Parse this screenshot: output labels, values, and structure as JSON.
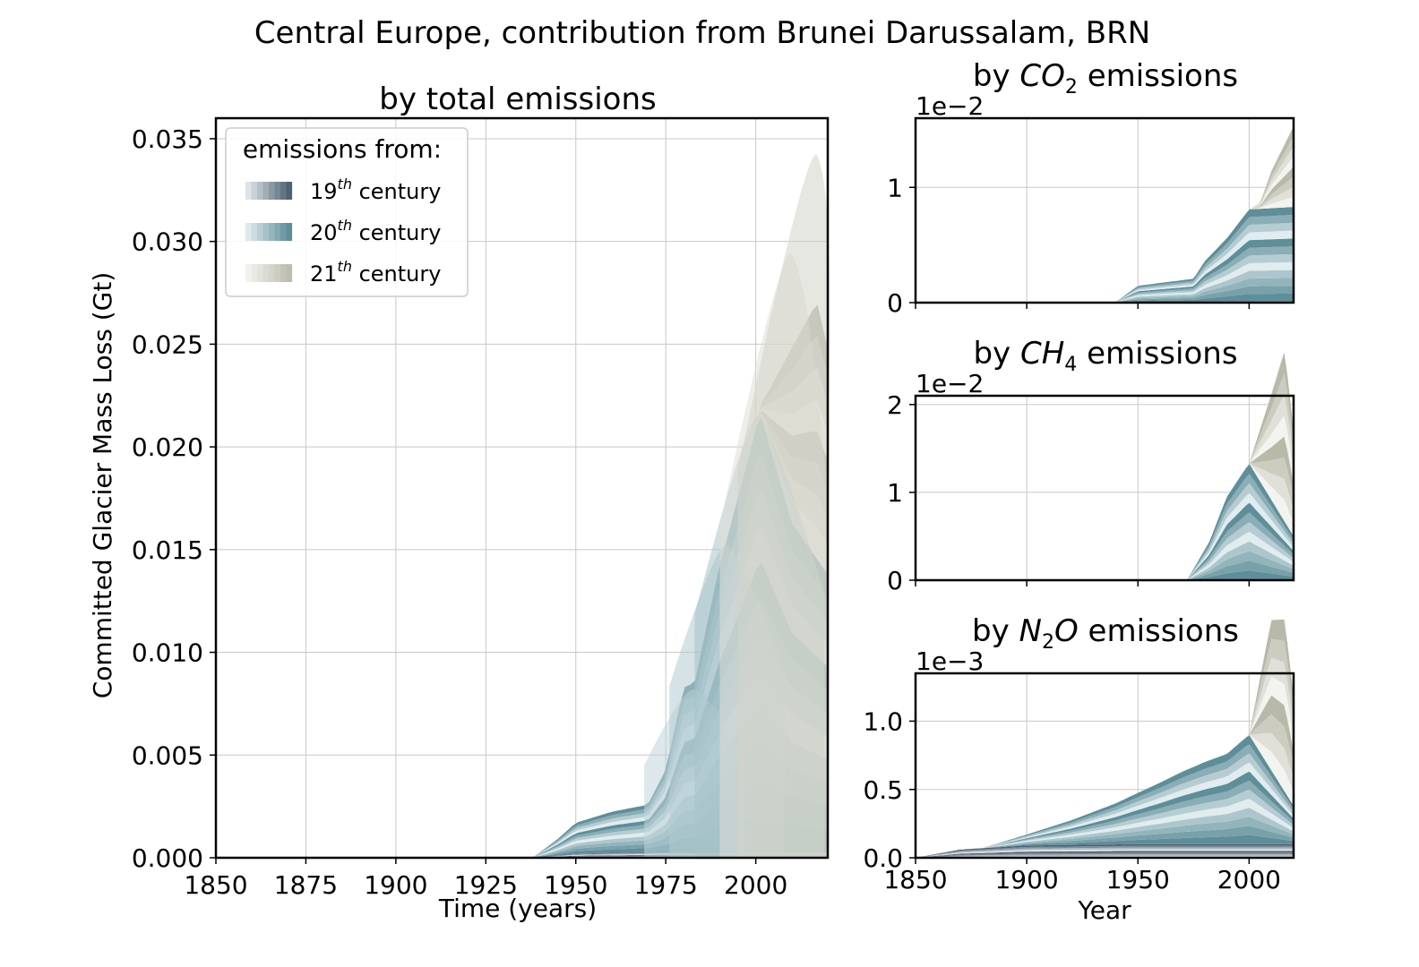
{
  "suptitle": "Central Europe, contribution from Brunei Darussalam, BRN",
  "legend": {
    "title": "emissions from:",
    "entries": [
      {
        "label": "19",
        "sup": "th",
        "suffix": " century",
        "gradient": [
          "#dfe3e8",
          "#4e6273"
        ]
      },
      {
        "label": "20",
        "sup": "th",
        "suffix": " century",
        "gradient": [
          "#dde9ed",
          "#5e8e99"
        ]
      },
      {
        "label": "21",
        "sup": "th",
        "suffix": " century",
        "gradient": [
          "#f2f2ee",
          "#bdbdae"
        ]
      }
    ]
  },
  "colors": {
    "c19_light": "#dfe3e8",
    "c19_dark": "#4e6273",
    "c20_light": "#e1ecef",
    "c20_dark": "#5e8e99",
    "c21_light": "#f3f3ef",
    "c21_dark": "#b9b9aa",
    "grid": "#c8c8c8"
  },
  "chart_data": [
    {
      "id": "total",
      "type": "area",
      "title": "by total emissions",
      "xlabel": "Time (years)",
      "ylabel": "Committed Glacier Mass Loss (Gt)",
      "xlim": [
        1850,
        2020
      ],
      "ylim": [
        0,
        0.036
      ],
      "xticks": [
        1850,
        1875,
        1900,
        1925,
        1950,
        1975,
        2000
      ],
      "yticks": [
        0,
        0.005,
        0.01,
        0.015,
        0.02,
        0.025,
        0.03,
        0.035
      ],
      "ytick_labels": [
        "0.000",
        "0.005",
        "0.010",
        "0.015",
        "0.020",
        "0.025",
        "0.030",
        "0.035"
      ],
      "offset_text": "",
      "grid": true,
      "legend_position": "upper-left",
      "series": [
        {
          "name": "19th century",
          "x": [
            1850,
            1900,
            1938,
            1950,
            1975,
            2000,
            2020
          ],
          "y": [
            0,
            0,
            0,
            0.0002,
            0.0003,
            0.0003,
            0.0003
          ]
        },
        {
          "name": "20th century",
          "x": [
            1850,
            1900,
            1938,
            1945,
            1950,
            1960,
            1970,
            1975,
            1980,
            1983,
            1990,
            1992,
            2000,
            2001,
            2010,
            2020
          ],
          "y": [
            0,
            0,
            0,
            0.0008,
            0.0015,
            0.002,
            0.0023,
            0.004,
            0.008,
            0.0082,
            0.014,
            0.0152,
            0.0205,
            0.0215,
            0.016,
            0.0135
          ]
        },
        {
          "name": "21st century",
          "x": [
            1850,
            1900,
            1938,
            2000,
            2001,
            2010,
            2017,
            2020
          ],
          "y": [
            0,
            0,
            0,
            0,
            0.0001,
            0.0085,
            0.0125,
            0.011
          ]
        }
      ],
      "peaks": [
        {
          "x": 1983,
          "y": 0.0082
        },
        {
          "x": 1992,
          "y": 0.0152
        },
        {
          "x": 2001,
          "y": 0.0215
        },
        {
          "x": 2010,
          "y": 0.0294
        },
        {
          "x": 2017,
          "y": 0.0342
        }
      ]
    },
    {
      "id": "co2",
      "type": "area",
      "title_prefix": "by ",
      "title_species": "CO",
      "title_sub": "2",
      "title_species_tail": "",
      "title_suffix": " emissions",
      "xlabel": "",
      "ylabel": "",
      "xlim": [
        1850,
        2020
      ],
      "ylim": [
        0,
        1.6
      ],
      "yticks": [
        0,
        1
      ],
      "ytick_labels": [
        "0",
        "1"
      ],
      "offset_text": "1e−2",
      "grid": true,
      "series": [
        {
          "name": "19th century",
          "x": [
            1850,
            2020
          ],
          "y": [
            0,
            0.01
          ]
        },
        {
          "name": "20th century",
          "x": [
            1850,
            1940,
            1950,
            1975,
            1980,
            1990,
            2000,
            2020
          ],
          "y": [
            0,
            0,
            0.14,
            0.2,
            0.35,
            0.55,
            0.8,
            0.82
          ]
        },
        {
          "name": "21st century",
          "x": [
            1850,
            2000,
            2005,
            2010,
            2020
          ],
          "y": [
            0,
            0,
            0.05,
            0.32,
            0.7
          ]
        }
      ]
    },
    {
      "id": "ch4",
      "type": "area",
      "title_prefix": "by ",
      "title_species": "CH",
      "title_sub": "4",
      "title_species_tail": "",
      "title_suffix": " emissions",
      "xlabel": "",
      "ylabel": "",
      "xlim": [
        1850,
        2020
      ],
      "ylim": [
        0,
        2.1
      ],
      "yticks": [
        0,
        1,
        2
      ],
      "ytick_labels": [
        "0",
        "1",
        "2"
      ],
      "offset_text": "1e−2",
      "grid": true,
      "series": [
        {
          "name": "19th century",
          "x": [
            1850,
            2020
          ],
          "y": [
            0,
            0
          ]
        },
        {
          "name": "20th century",
          "x": [
            1850,
            1972,
            1982,
            1990,
            2000,
            2020
          ],
          "y": [
            0,
            0,
            0.43,
            0.95,
            1.33,
            0.5
          ]
        },
        {
          "name": "21st century",
          "x": [
            1850,
            2000,
            2010,
            2016,
            2020
          ],
          "y": [
            0,
            0,
            1.2,
            1.95,
            1.2
          ]
        }
      ]
    },
    {
      "id": "n2o",
      "type": "area",
      "title_prefix": "by ",
      "title_species": "N",
      "title_sub": "2",
      "title_species_tail": "O",
      "title_suffix": " emissions",
      "xlabel": "Year",
      "ylabel": "",
      "xlim": [
        1850,
        2020
      ],
      "ylim": [
        0,
        1.35
      ],
      "xticks": [
        1850,
        1900,
        1950,
        2000
      ],
      "yticks": [
        0,
        0.5,
        1.0
      ],
      "ytick_labels": [
        "0.0",
        "0.5",
        "1.0"
      ],
      "offset_text": "1e−3",
      "grid": true,
      "series": [
        {
          "name": "19th century",
          "x": [
            1850,
            1870,
            1900,
            1950,
            2000,
            2020
          ],
          "y": [
            0,
            0.06,
            0.09,
            0.1,
            0.1,
            0.1
          ]
        },
        {
          "name": "20th century",
          "x": [
            1850,
            1880,
            1900,
            1920,
            1940,
            1960,
            1970,
            1980,
            1990,
            2000,
            2020
          ],
          "y": [
            0,
            0,
            0.08,
            0.18,
            0.3,
            0.45,
            0.53,
            0.6,
            0.66,
            0.8,
            0.28
          ]
        },
        {
          "name": "21st century",
          "x": [
            1850,
            2000,
            2010,
            2016,
            2020
          ],
          "y": [
            0,
            0,
            1.1,
            1.26,
            0.8
          ]
        }
      ]
    }
  ]
}
